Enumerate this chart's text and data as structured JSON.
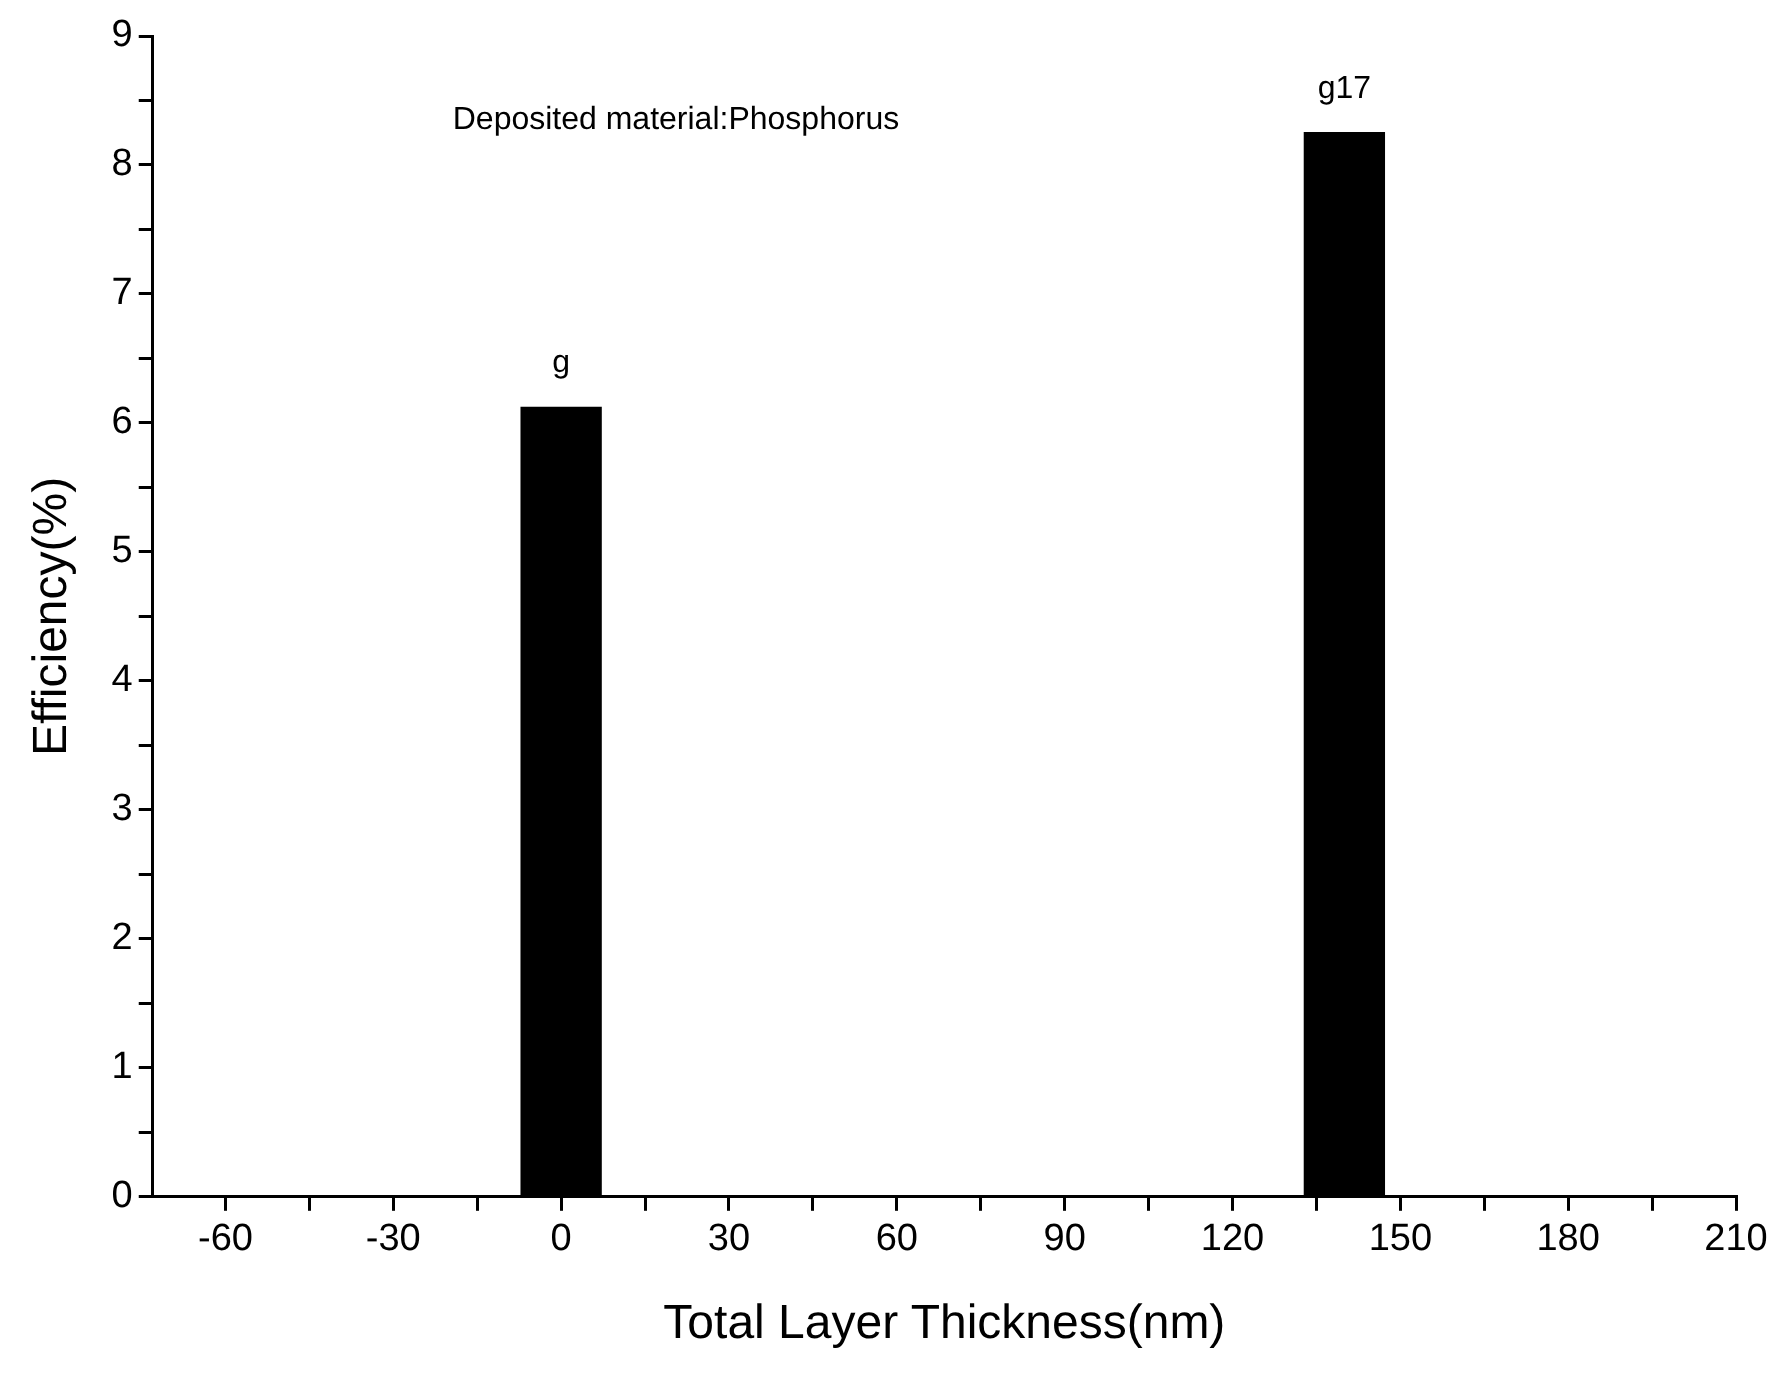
{
  "chart_data": {
    "type": "bar",
    "xlabel": "Total Layer Thickness(nm)",
    "ylabel": "Efficiency(%)",
    "x": [
      0,
      140
    ],
    "values": [
      6.12,
      8.25
    ],
    "value_labels": [
      "g",
      "g17"
    ],
    "color": "#000000",
    "xlim": [
      -73,
      210
    ],
    "xticks": [
      -60,
      {
        "value": -45,
        "label": null
      },
      -30,
      {
        "value": -15,
        "label": null
      },
      0,
      {
        "value": 15,
        "label": null
      },
      30,
      {
        "value": 45,
        "label": null
      },
      60,
      {
        "value": 75,
        "label": null
      },
      90,
      {
        "value": 105,
        "label": null
      },
      120,
      {
        "value": 135,
        "label": null
      },
      150,
      {
        "value": 165,
        "label": null
      },
      180,
      {
        "value": 195,
        "label": null
      },
      210
    ],
    "ylim": [
      0,
      9
    ],
    "yticks": [
      0,
      {
        "value": 0.5,
        "label": null
      },
      1,
      {
        "value": 1.5,
        "label": null
      },
      2,
      {
        "value": 2.5,
        "label": null
      },
      3,
      {
        "value": 3.5,
        "label": null
      },
      4,
      {
        "value": 4.5,
        "label": null
      },
      5,
      {
        "value": 5.5,
        "label": null
      },
      6,
      {
        "value": 6.5,
        "label": null
      },
      7,
      {
        "value": 7.5,
        "label": null
      },
      8,
      {
        "value": 8.5,
        "label": null
      },
      9
    ],
    "annotations": [
      "Deposited material:Phosphorus"
    ],
    "grid": false,
    "legend": false
  }
}
